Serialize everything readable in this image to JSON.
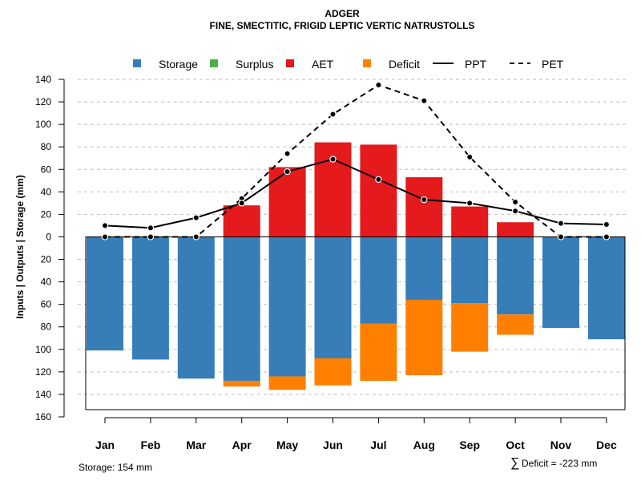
{
  "colors": {
    "storage": "#377EB8",
    "surplus": "#4DAF4A",
    "aet": "#E41A1C",
    "deficit": "#FF7F00",
    "line": "#000000",
    "grid": "#BEBEBE"
  },
  "chart_data": {
    "type": "bar",
    "title": "ADGER",
    "subtitle": "FINE, SMECTITIC, FRIGID LEPTIC VERTIC NATRUSTOLLS",
    "ylabel": "Inputs | Outputs | Storage    (mm)",
    "xlabel": "",
    "ylim": [
      -160,
      140
    ],
    "y_ticks": [
      140,
      120,
      100,
      80,
      60,
      40,
      20,
      0,
      -20,
      -40,
      -60,
      -80,
      -100,
      -120,
      -140,
      -160
    ],
    "y_tick_labels": [
      "140",
      "120",
      "100",
      "80",
      "60",
      "40",
      "20",
      "0",
      "20",
      "40",
      "60",
      "80",
      "100",
      "120",
      "140",
      "160"
    ],
    "categories": [
      "Jan",
      "Feb",
      "Mar",
      "Apr",
      "May",
      "Jun",
      "Jul",
      "Aug",
      "Sep",
      "Oct",
      "Nov",
      "Dec"
    ],
    "legend": [
      "Storage",
      "Surplus",
      "AET",
      "Deficit",
      "PPT",
      "PET"
    ],
    "series": [
      {
        "name": "Storage",
        "kind": "bar-below",
        "values": [
          101,
          109,
          126,
          128,
          124,
          108,
          77,
          56,
          59,
          69,
          81,
          91
        ]
      },
      {
        "name": "Surplus",
        "kind": "bar-above",
        "values": [
          0,
          0,
          0,
          0,
          0,
          0,
          0,
          0,
          0,
          0,
          0,
          0
        ]
      },
      {
        "name": "AET",
        "kind": "bar-above",
        "values": [
          0,
          0,
          0,
          28,
          62,
          84,
          82,
          53,
          27,
          13,
          0,
          0
        ]
      },
      {
        "name": "Deficit",
        "kind": "bar-below-stacked",
        "values": [
          0,
          0,
          0,
          5,
          12,
          24,
          51,
          67,
          43,
          18,
          0,
          0
        ]
      },
      {
        "name": "PPT",
        "kind": "line-solid",
        "values": [
          10,
          8,
          17,
          30,
          58,
          69,
          51,
          33,
          30,
          23,
          12,
          11
        ]
      },
      {
        "name": "PET",
        "kind": "line-dashed",
        "values": [
          0,
          0,
          0,
          34,
          74,
          109,
          135,
          121,
          71,
          31,
          0,
          0
        ]
      }
    ]
  },
  "footer": {
    "storage": "Storage: 154 mm",
    "deficit_symbol": "∑",
    "deficit": "Deficit = -223 mm"
  }
}
